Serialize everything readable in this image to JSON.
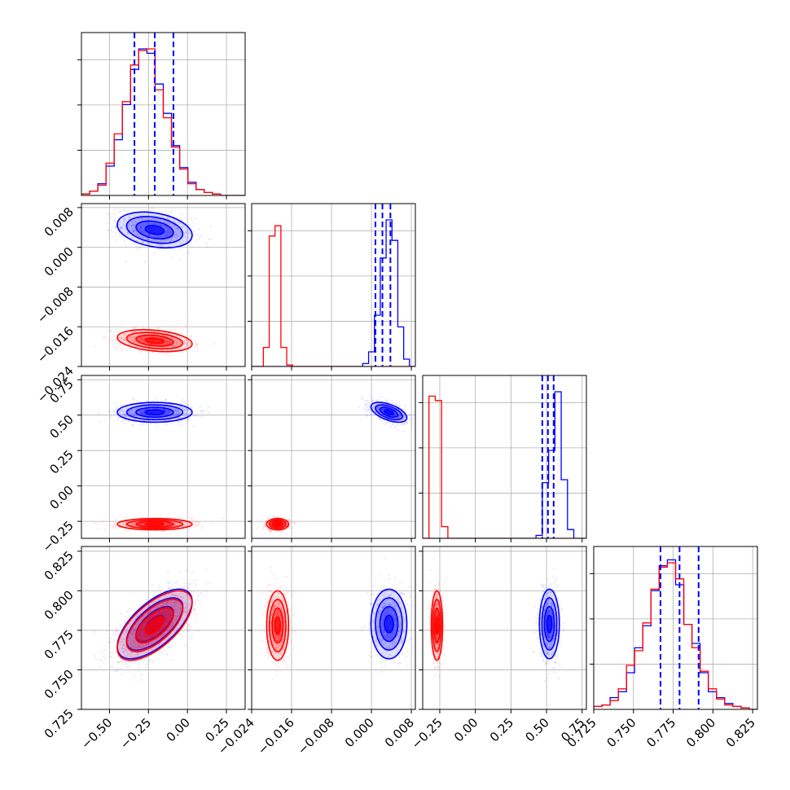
{
  "chart_data": {
    "type": "corner",
    "grid": true,
    "parameters": [
      {
        "ticks": [
          -0.5,
          -0.25,
          0.0,
          0.25
        ],
        "tick_labels": [
          "−0.50",
          "−0.25",
          "0.00",
          "0.25"
        ],
        "range": [
          -0.68,
          0.37
        ]
      },
      {
        "ticks": [
          -0.024,
          -0.016,
          -0.008,
          0.0,
          0.008
        ],
        "tick_labels": [
          "−0.024",
          "−0.016",
          "−0.008",
          "0.000",
          "0.008"
        ],
        "range": [
          -0.024,
          0.0088
        ]
      },
      {
        "ticks": [
          -0.25,
          0.0,
          0.25,
          0.5,
          0.75
        ],
        "tick_labels": [
          "−0.25",
          "0.00",
          "0.25",
          "0.50",
          "0.75"
        ],
        "range": [
          -0.37,
          0.78
        ]
      },
      {
        "ticks": [
          0.725,
          0.75,
          0.775,
          0.8,
          0.825
        ],
        "tick_labels": [
          "0.725",
          "0.750",
          "0.775",
          "0.800",
          "0.825"
        ],
        "range": [
          0.725,
          0.828
        ]
      }
    ],
    "series": [
      {
        "color": "#0000ff",
        "means": [
          -0.21,
          0.0035,
          0.52,
          0.779
        ],
        "sds": [
          0.12,
          0.0018,
          0.035,
          0.011
        ],
        "quantiles": [
          [
            -0.34,
            -0.21,
            -0.09
          ],
          [
            0.0008,
            0.0022,
            0.0038
          ],
          [
            0.47,
            0.51,
            0.55
          ],
          [
            0.767,
            0.779,
            0.791
          ]
        ],
        "hist": [
          [
            0.01,
            0.03,
            0.08,
            0.2,
            0.38,
            0.62,
            0.86,
            1.0,
            0.97,
            0.76,
            0.56,
            0.34,
            0.19,
            0.09,
            0.04,
            0.02,
            0.01,
            0.0,
            0.0,
            0.0
          ],
          [
            0,
            0,
            0,
            0,
            0,
            0,
            0,
            0,
            0,
            0,
            0,
            0,
            0,
            0,
            0,
            0,
            0,
            0,
            0,
            0.02,
            0.1,
            0.35,
            0.74,
            1.0,
            0.86,
            0.27,
            0.05,
            0.0
          ],
          [
            0,
            0,
            0,
            0,
            0,
            0,
            0,
            0,
            0,
            0,
            0,
            0,
            0,
            0,
            0,
            0,
            0,
            0,
            0.02,
            0.38,
            0.6,
            1.0,
            0.4,
            0.06,
            0.0,
            0.0
          ],
          [
            0.02,
            0.03,
            0.08,
            0.12,
            0.25,
            0.42,
            0.57,
            0.81,
            0.98,
            1.02,
            0.85,
            0.58,
            0.45,
            0.25,
            0.12,
            0.08,
            0.04,
            0.02,
            0.01,
            0.0
          ]
        ]
      },
      {
        "color": "#ff0000",
        "means": [
          -0.21,
          -0.0188,
          -0.27,
          0.778
        ],
        "sds": [
          0.12,
          0.0011,
          0.02,
          0.011
        ],
        "quantiles": [],
        "hist": [
          [
            0.01,
            0.03,
            0.07,
            0.22,
            0.42,
            0.64,
            0.89,
            0.99,
            1.0,
            0.72,
            0.53,
            0.33,
            0.18,
            0.08,
            0.04,
            0.02,
            0.01,
            0.0,
            0.0,
            0.0
          ],
          [
            0,
            0.0,
            0.13,
            0.89,
            0.96,
            0.13,
            0.01,
            0,
            0,
            0,
            0,
            0,
            0,
            0,
            0,
            0,
            0,
            0,
            0,
            0,
            0,
            0,
            0,
            0,
            0,
            0,
            0,
            0
          ],
          [
            0.0,
            0.97,
            0.94,
            0.08,
            0.0,
            0,
            0,
            0,
            0,
            0,
            0,
            0,
            0,
            0,
            0,
            0,
            0,
            0,
            0,
            0,
            0,
            0,
            0,
            0,
            0,
            0
          ],
          [
            0.02,
            0.03,
            0.06,
            0.14,
            0.3,
            0.4,
            0.59,
            0.82,
            0.97,
            1.0,
            0.89,
            0.58,
            0.42,
            0.26,
            0.14,
            0.07,
            0.03,
            0.02,
            0.01,
            0.0
          ]
        ]
      }
    ],
    "correlations": [
      {
        "pair": [
          1,
          0
        ],
        "blue": -0.3,
        "red": -0.3
      },
      {
        "pair": [
          2,
          0
        ],
        "blue": 0.0,
        "red": 0.0
      },
      {
        "pair": [
          2,
          1
        ],
        "blue": -0.55,
        "red": 0.0
      },
      {
        "pair": [
          3,
          0
        ],
        "blue": 0.65,
        "red": 0.65
      },
      {
        "pair": [
          3,
          1
        ],
        "blue": 0.0,
        "red": 0.0
      },
      {
        "pair": [
          3,
          2
        ],
        "blue": 0.0,
        "red": 0.0
      }
    ]
  }
}
